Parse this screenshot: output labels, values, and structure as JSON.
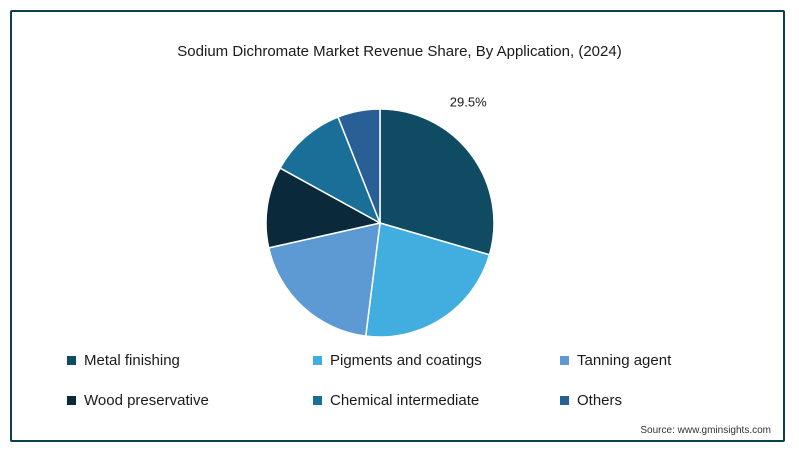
{
  "chart_data": {
    "type": "pie",
    "title": "Sodium Dichromate Market Revenue Share, By Application, (2024)",
    "slices": [
      {
        "name": "Metal finishing",
        "value": 29.5,
        "label": "29.5%",
        "color": "#0f4c63"
      },
      {
        "name": "Pigments and coatings",
        "value": 22.5,
        "label": "",
        "color": "#42aee0"
      },
      {
        "name": "Tanning agent",
        "value": 19.5,
        "label": "",
        "color": "#5d9ad3"
      },
      {
        "name": "Wood preservative",
        "value": 11.5,
        "label": "",
        "color": "#0a2a3b"
      },
      {
        "name": "Chemical intermediate",
        "value": 11.0,
        "label": "",
        "color": "#1a6f99"
      },
      {
        "name": "Others",
        "value": 6.0,
        "label": "",
        "color": "#285f95"
      }
    ],
    "legend_position": "bottom"
  },
  "source": "Source: www.gminsights.com"
}
